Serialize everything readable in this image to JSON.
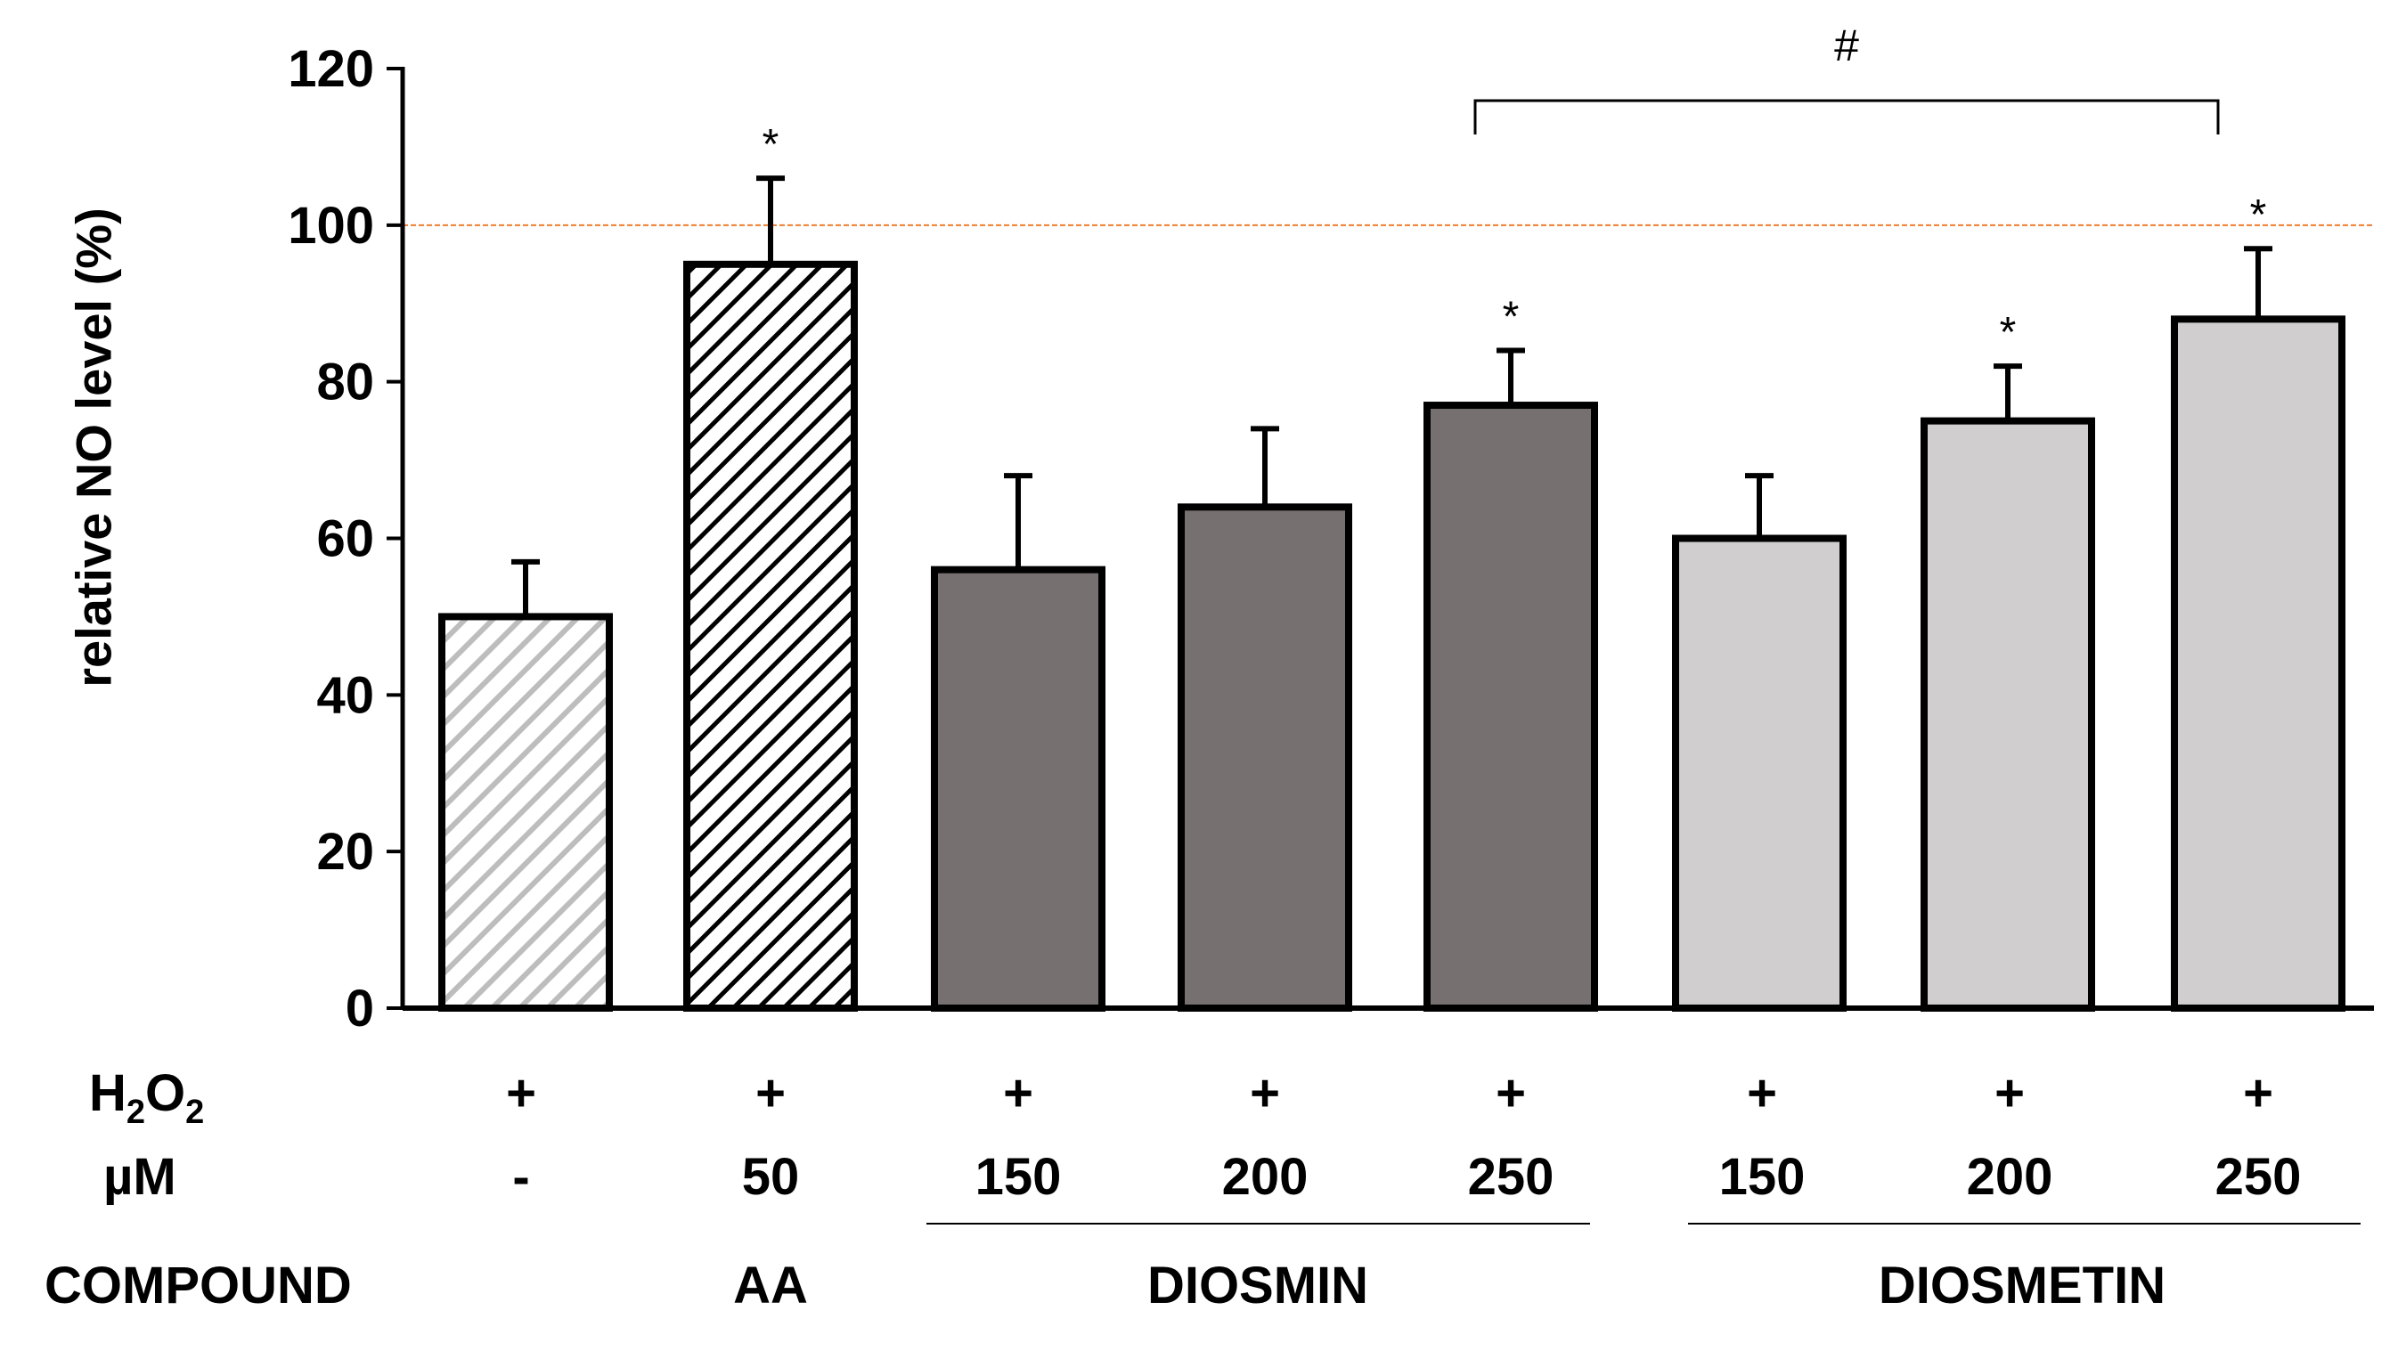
{
  "chart_data": {
    "type": "bar",
    "ylabel": "relative NO level (%)",
    "ylim": [
      0,
      120
    ],
    "yticks": [
      0,
      20,
      40,
      60,
      80,
      100,
      120
    ],
    "reference_line": 100,
    "categories": [
      "H2O2 only",
      "AA 50",
      "DIOSMIN 150",
      "DIOSMIN 200",
      "DIOSMIN 250",
      "DIOSMETIN 150",
      "DIOSMETIN 200",
      "DIOSMETIN 250"
    ],
    "values": [
      50,
      95,
      56,
      64,
      77,
      60,
      75,
      88
    ],
    "errors": [
      7,
      11,
      12,
      10,
      7,
      8,
      7,
      9
    ],
    "significance": [
      "",
      "*",
      "",
      "",
      "*",
      "",
      "*",
      "*"
    ],
    "bracket": {
      "from": 4,
      "to": 7,
      "label": "#"
    }
  },
  "table": {
    "h2o2_label_main": "H",
    "h2o2_sub1": "2",
    "h2o2_mid": "O",
    "h2o2_sub2": "2",
    "um_label": "µM",
    "compound_label": "COMPOUND",
    "h2o2_values": [
      "+",
      "+",
      "+",
      "+",
      "+",
      "+",
      "+",
      "+"
    ],
    "um_values": [
      "-",
      "50",
      "150",
      "200",
      "250",
      "150",
      "200",
      "250"
    ],
    "compounds": [
      "AA",
      "DIOSMIN",
      "DIOSMETIN"
    ]
  },
  "colors": {
    "control_hatch": "#bdbdbd",
    "aa_hatch": "#000000",
    "diosmin": "#767170",
    "diosmetin": "#d0cece",
    "reference": "#ed7d31"
  }
}
